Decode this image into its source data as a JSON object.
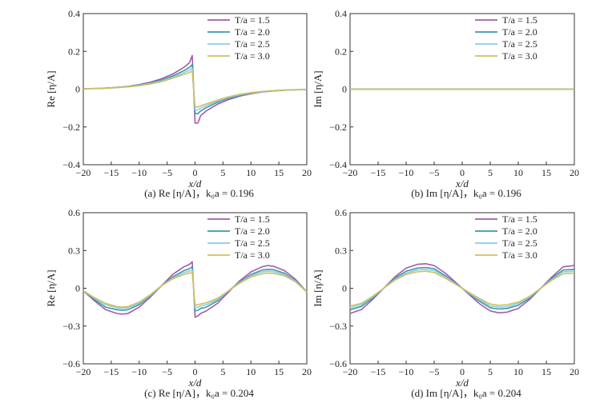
{
  "colors": {
    "T/a=1.5": "#a45aae",
    "T/a=2.0": "#3a9aa0",
    "T/a=2.5": "#8ccde0",
    "T/a=3.0": "#d0c062"
  },
  "chart_data": [
    {
      "type": "line",
      "caption": "(a) Re [η/A]，k₀a = 0.196",
      "xlabel": "x/d",
      "ylabel": "Re [η/A]",
      "xlim": [
        -20,
        20
      ],
      "ylim": [
        -0.4,
        0.4
      ],
      "xticks": [
        "−20",
        "−15",
        "−10",
        "−5",
        "0",
        "5",
        "10",
        "15",
        "20"
      ],
      "yticks": [
        "0.4",
        "0.2",
        "0",
        "−0.2",
        "−0.4"
      ],
      "ytick_values": [
        0.4,
        0.2,
        0,
        -0.2,
        -0.4
      ],
      "legend": "top-right",
      "series": [
        {
          "name": "T/a = 1.5",
          "x": [
            -20,
            -17,
            -15,
            -12,
            -10,
            -8,
            -6,
            -4,
            -2,
            -1,
            -0.5,
            0,
            0.5,
            1,
            2,
            4,
            6,
            8,
            10,
            12,
            15,
            17,
            20
          ],
          "y": [
            0.002,
            0.004,
            0.007,
            0.015,
            0.024,
            0.037,
            0.055,
            0.08,
            0.115,
            0.14,
            0.178,
            -0.18,
            -0.18,
            -0.14,
            -0.115,
            -0.08,
            -0.055,
            -0.037,
            -0.024,
            -0.015,
            -0.007,
            -0.004,
            -0.002
          ]
        },
        {
          "name": "T/a = 2.0",
          "x": [
            -20,
            -17,
            -15,
            -12,
            -10,
            -8,
            -6,
            -4,
            -2,
            -1,
            -0.5,
            0,
            0.5,
            1,
            2,
            4,
            6,
            8,
            10,
            12,
            15,
            17,
            20
          ],
          "y": [
            0.002,
            0.004,
            0.007,
            0.014,
            0.022,
            0.033,
            0.048,
            0.07,
            0.098,
            0.115,
            0.13,
            -0.13,
            -0.13,
            -0.115,
            -0.098,
            -0.07,
            -0.048,
            -0.033,
            -0.022,
            -0.014,
            -0.007,
            -0.004,
            -0.002
          ]
        },
        {
          "name": "T/a = 2.5",
          "x": [
            -20,
            -17,
            -15,
            -12,
            -10,
            -8,
            -6,
            -4,
            -2,
            -1,
            -0.5,
            0,
            0.5,
            1,
            2,
            4,
            6,
            8,
            10,
            12,
            15,
            17,
            20
          ],
          "y": [
            0.002,
            0.004,
            0.006,
            0.013,
            0.02,
            0.03,
            0.043,
            0.063,
            0.087,
            0.1,
            0.11,
            -0.11,
            -0.11,
            -0.1,
            -0.087,
            -0.063,
            -0.043,
            -0.03,
            -0.02,
            -0.013,
            -0.006,
            -0.004,
            -0.002
          ]
        },
        {
          "name": "T/a = 3.0",
          "x": [
            -20,
            -17,
            -15,
            -12,
            -10,
            -8,
            -6,
            -4,
            -2,
            -1,
            -0.5,
            0,
            0.5,
            1,
            2,
            4,
            6,
            8,
            10,
            12,
            15,
            17,
            20
          ],
          "y": [
            0.002,
            0.003,
            0.006,
            0.012,
            0.018,
            0.027,
            0.04,
            0.058,
            0.078,
            0.088,
            0.095,
            -0.095,
            -0.095,
            -0.088,
            -0.078,
            -0.058,
            -0.04,
            -0.027,
            -0.018,
            -0.012,
            -0.006,
            -0.003,
            -0.002
          ]
        }
      ]
    },
    {
      "type": "line",
      "caption": "(b) Im [η/A]，k₀a = 0.196",
      "xlabel": "x/d",
      "ylabel": "Im [η/A]",
      "xlim": [
        -20,
        20
      ],
      "ylim": [
        -0.4,
        0.4
      ],
      "xticks": [
        "−20",
        "−15",
        "−10",
        "−5",
        "0",
        "5",
        "10",
        "15",
        "20"
      ],
      "yticks": [
        "0.4",
        "0.2",
        "0",
        "−0.2",
        "−0.4"
      ],
      "ytick_values": [
        0.4,
        0.2,
        0,
        -0.2,
        -0.4
      ],
      "legend": "top-right",
      "series": [
        {
          "name": "T/a = 1.5",
          "x": [
            -20,
            20
          ],
          "y": [
            0,
            0
          ]
        },
        {
          "name": "T/a = 2.0",
          "x": [
            -20,
            20
          ],
          "y": [
            0,
            0
          ]
        },
        {
          "name": "T/a = 2.5",
          "x": [
            -20,
            20
          ],
          "y": [
            0,
            0
          ]
        },
        {
          "name": "T/a = 3.0",
          "x": [
            -20,
            20
          ],
          "y": [
            0,
            0
          ]
        }
      ]
    },
    {
      "type": "line",
      "caption": "(c) Re [η/A]，k₀a = 0.204",
      "xlabel": "x/d",
      "ylabel": "Re [η/A]",
      "xlim": [
        -20,
        20
      ],
      "ylim": [
        -0.6,
        0.6
      ],
      "xticks": [
        "−20",
        "−15",
        "−10",
        "−5",
        "0",
        "5",
        "10",
        "15",
        "20"
      ],
      "yticks": [
        "0.6",
        "0.3",
        "0",
        "−0.3",
        "−0.6"
      ],
      "ytick_values": [
        0.6,
        0.3,
        0,
        -0.3,
        -0.6
      ],
      "legend": "top-right",
      "series": [
        {
          "name": "T/a = 1.5",
          "x": [
            -20,
            -18,
            -16,
            -14,
            -13,
            -12,
            -10,
            -8,
            -6,
            -4,
            -2,
            -1,
            -0.5,
            0,
            0.5,
            1,
            2,
            4,
            6,
            8,
            10,
            12,
            13,
            14,
            16,
            18,
            20
          ],
          "y": [
            -0.02,
            -0.1,
            -0.17,
            -0.2,
            -0.205,
            -0.2,
            -0.15,
            -0.07,
            0.02,
            0.11,
            0.17,
            0.19,
            0.21,
            -0.23,
            -0.22,
            -0.2,
            -0.18,
            -0.12,
            -0.03,
            0.06,
            0.13,
            0.17,
            0.18,
            0.175,
            0.14,
            0.07,
            -0.03
          ]
        },
        {
          "name": "T/a = 2.0",
          "x": [
            -20,
            -18,
            -16,
            -14,
            -13,
            -12,
            -10,
            -8,
            -6,
            -4,
            -2,
            -1,
            -0.5,
            0,
            0.5,
            1,
            2,
            4,
            6,
            8,
            10,
            12,
            13,
            14,
            16,
            18,
            20
          ],
          "y": [
            -0.02,
            -0.09,
            -0.15,
            -0.17,
            -0.175,
            -0.17,
            -0.13,
            -0.06,
            0.02,
            0.09,
            0.14,
            0.155,
            0.17,
            -0.18,
            -0.175,
            -0.16,
            -0.15,
            -0.1,
            -0.02,
            0.05,
            0.11,
            0.145,
            0.15,
            0.148,
            0.12,
            0.06,
            -0.03
          ]
        },
        {
          "name": "T/a = 2.5",
          "x": [
            -20,
            -18,
            -16,
            -14,
            -13,
            -12,
            -10,
            -8,
            -6,
            -4,
            -2,
            -1,
            -0.5,
            0,
            0.5,
            1,
            2,
            4,
            6,
            8,
            10,
            12,
            13,
            14,
            16,
            18,
            20
          ],
          "y": [
            -0.02,
            -0.08,
            -0.13,
            -0.155,
            -0.16,
            -0.155,
            -0.12,
            -0.055,
            0.02,
            0.08,
            0.125,
            0.135,
            0.145,
            -0.155,
            -0.15,
            -0.14,
            -0.13,
            -0.09,
            -0.02,
            0.045,
            0.1,
            0.13,
            0.135,
            0.132,
            0.11,
            0.055,
            -0.03
          ]
        },
        {
          "name": "T/a = 3.0",
          "x": [
            -20,
            -18,
            -16,
            -14,
            -13,
            -12,
            -10,
            -8,
            -6,
            -4,
            -2,
            -1,
            -0.5,
            0,
            0.5,
            1,
            2,
            4,
            6,
            8,
            10,
            12,
            13,
            14,
            16,
            18,
            20
          ],
          "y": [
            -0.02,
            -0.075,
            -0.12,
            -0.145,
            -0.15,
            -0.145,
            -0.11,
            -0.05,
            0.02,
            0.075,
            0.11,
            0.12,
            0.125,
            -0.135,
            -0.13,
            -0.125,
            -0.115,
            -0.08,
            -0.02,
            0.04,
            0.09,
            0.115,
            0.12,
            0.118,
            0.1,
            0.05,
            -0.03
          ]
        }
      ]
    },
    {
      "type": "line",
      "caption": "(d) Im [η/A]，k₀a = 0.204",
      "xlabel": "x/d",
      "ylabel": "Im [η/A]",
      "xlim": [
        -20,
        20
      ],
      "ylim": [
        -0.6,
        0.6
      ],
      "xticks": [
        "−20",
        "−15",
        "−10",
        "−5",
        "0",
        "5",
        "10",
        "15",
        "20"
      ],
      "yticks": [
        "0.6",
        "0.3",
        "0",
        "−0.3",
        "−0.6"
      ],
      "ytick_values": [
        0.6,
        0.3,
        0,
        -0.3,
        -0.6
      ],
      "legend": "top-right",
      "series": [
        {
          "name": "T/a = 1.5",
          "x": [
            -20,
            -18,
            -16,
            -14,
            -12,
            -10,
            -8,
            -6.5,
            -5,
            -3,
            0,
            3,
            5,
            6.5,
            8,
            10,
            12,
            14,
            16,
            18,
            20
          ],
          "y": [
            -0.2,
            -0.17,
            -0.09,
            0.0,
            0.09,
            0.16,
            0.19,
            0.195,
            0.18,
            0.12,
            0.0,
            -0.12,
            -0.18,
            -0.195,
            -0.19,
            -0.16,
            -0.09,
            0.0,
            0.09,
            0.17,
            0.18
          ]
        },
        {
          "name": "T/a = 2.0",
          "x": [
            -20,
            -18,
            -16,
            -14,
            -12,
            -10,
            -8,
            -6.5,
            -5,
            -3,
            0,
            3,
            5,
            6.5,
            8,
            10,
            12,
            14,
            16,
            18,
            20
          ],
          "y": [
            -0.17,
            -0.145,
            -0.08,
            0.0,
            0.08,
            0.135,
            0.16,
            0.165,
            0.155,
            0.1,
            0.0,
            -0.1,
            -0.155,
            -0.165,
            -0.16,
            -0.135,
            -0.08,
            0.0,
            0.08,
            0.145,
            0.15
          ]
        },
        {
          "name": "T/a = 2.5",
          "x": [
            -20,
            -18,
            -16,
            -14,
            -12,
            -10,
            -8,
            -6.5,
            -5,
            -3,
            0,
            3,
            5,
            6.5,
            8,
            10,
            12,
            14,
            16,
            18,
            20
          ],
          "y": [
            -0.155,
            -0.13,
            -0.07,
            0.0,
            0.07,
            0.12,
            0.145,
            0.15,
            0.14,
            0.09,
            0.0,
            -0.09,
            -0.14,
            -0.15,
            -0.145,
            -0.12,
            -0.07,
            0.0,
            0.07,
            0.13,
            0.135
          ]
        },
        {
          "name": "T/a = 3.0",
          "x": [
            -20,
            -18,
            -16,
            -14,
            -12,
            -10,
            -8,
            -6.5,
            -5,
            -3,
            0,
            3,
            5,
            6.5,
            8,
            10,
            12,
            14,
            16,
            18,
            20
          ],
          "y": [
            -0.14,
            -0.12,
            -0.065,
            0.0,
            0.065,
            0.11,
            0.13,
            0.135,
            0.125,
            0.08,
            0.0,
            -0.08,
            -0.125,
            -0.135,
            -0.13,
            -0.11,
            -0.065,
            0.0,
            0.065,
            0.115,
            0.12
          ]
        }
      ]
    }
  ]
}
